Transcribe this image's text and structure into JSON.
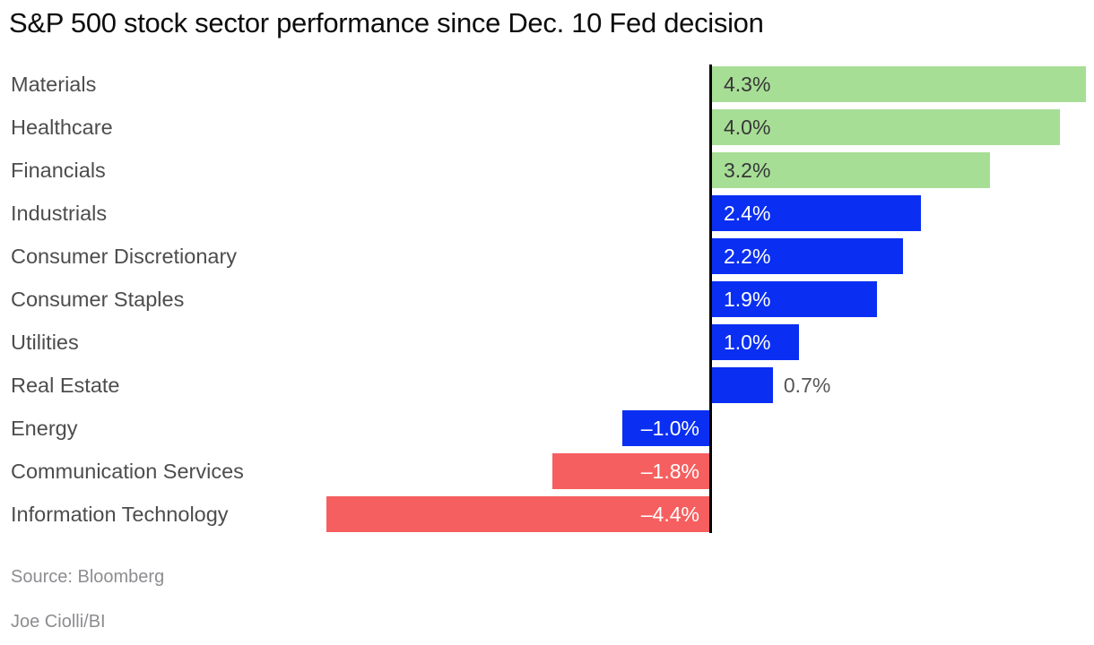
{
  "title": "S&P 500 stock sector performance since Dec. 10 Fed decision",
  "footer": {
    "source": "Source: Bloomberg",
    "byline": "Joe Ciolli/BI"
  },
  "chart_data": {
    "type": "bar",
    "orientation": "horizontal",
    "title": "S&P 500 stock sector performance since Dec. 10 Fed decision",
    "categories": [
      "Materials",
      "Healthcare",
      "Financials",
      "Industrials",
      "Consumer Discretionary",
      "Consumer Staples",
      "Utilities",
      "Real Estate",
      "Energy",
      "Communication Services",
      "Information Technology"
    ],
    "values": [
      4.3,
      4.0,
      3.2,
      2.4,
      2.2,
      1.9,
      1.0,
      0.7,
      -1.0,
      -1.8,
      -4.4
    ],
    "value_labels": [
      "4.3%",
      "4.0%",
      "3.2%",
      "2.4%",
      "2.2%",
      "1.9%",
      "1.0%",
      "0.7%",
      "–1.0%",
      "–1.8%",
      "–4.4%"
    ],
    "unit": "%",
    "bar_colors": [
      "green",
      "green",
      "green",
      "blue",
      "blue",
      "blue",
      "blue",
      "blue",
      "blue",
      "red",
      "red"
    ],
    "color_map": {
      "green": "#a7de96",
      "blue": "#0a2ff2",
      "red": "#f65f5f"
    },
    "value_label_styles": [
      "inside-dark",
      "inside-dark",
      "inside-dark",
      "inside-white",
      "inside-white",
      "inside-white",
      "inside-white",
      "outside-gray",
      "inside-white",
      "inside-white",
      "inside-white"
    ],
    "baseline": 0,
    "xlim": [
      -4.4,
      4.3
    ],
    "grid": false,
    "legend": false,
    "axis_line_color": "#000000",
    "source": "Bloomberg",
    "credit": "Joe Ciolli/BI"
  }
}
